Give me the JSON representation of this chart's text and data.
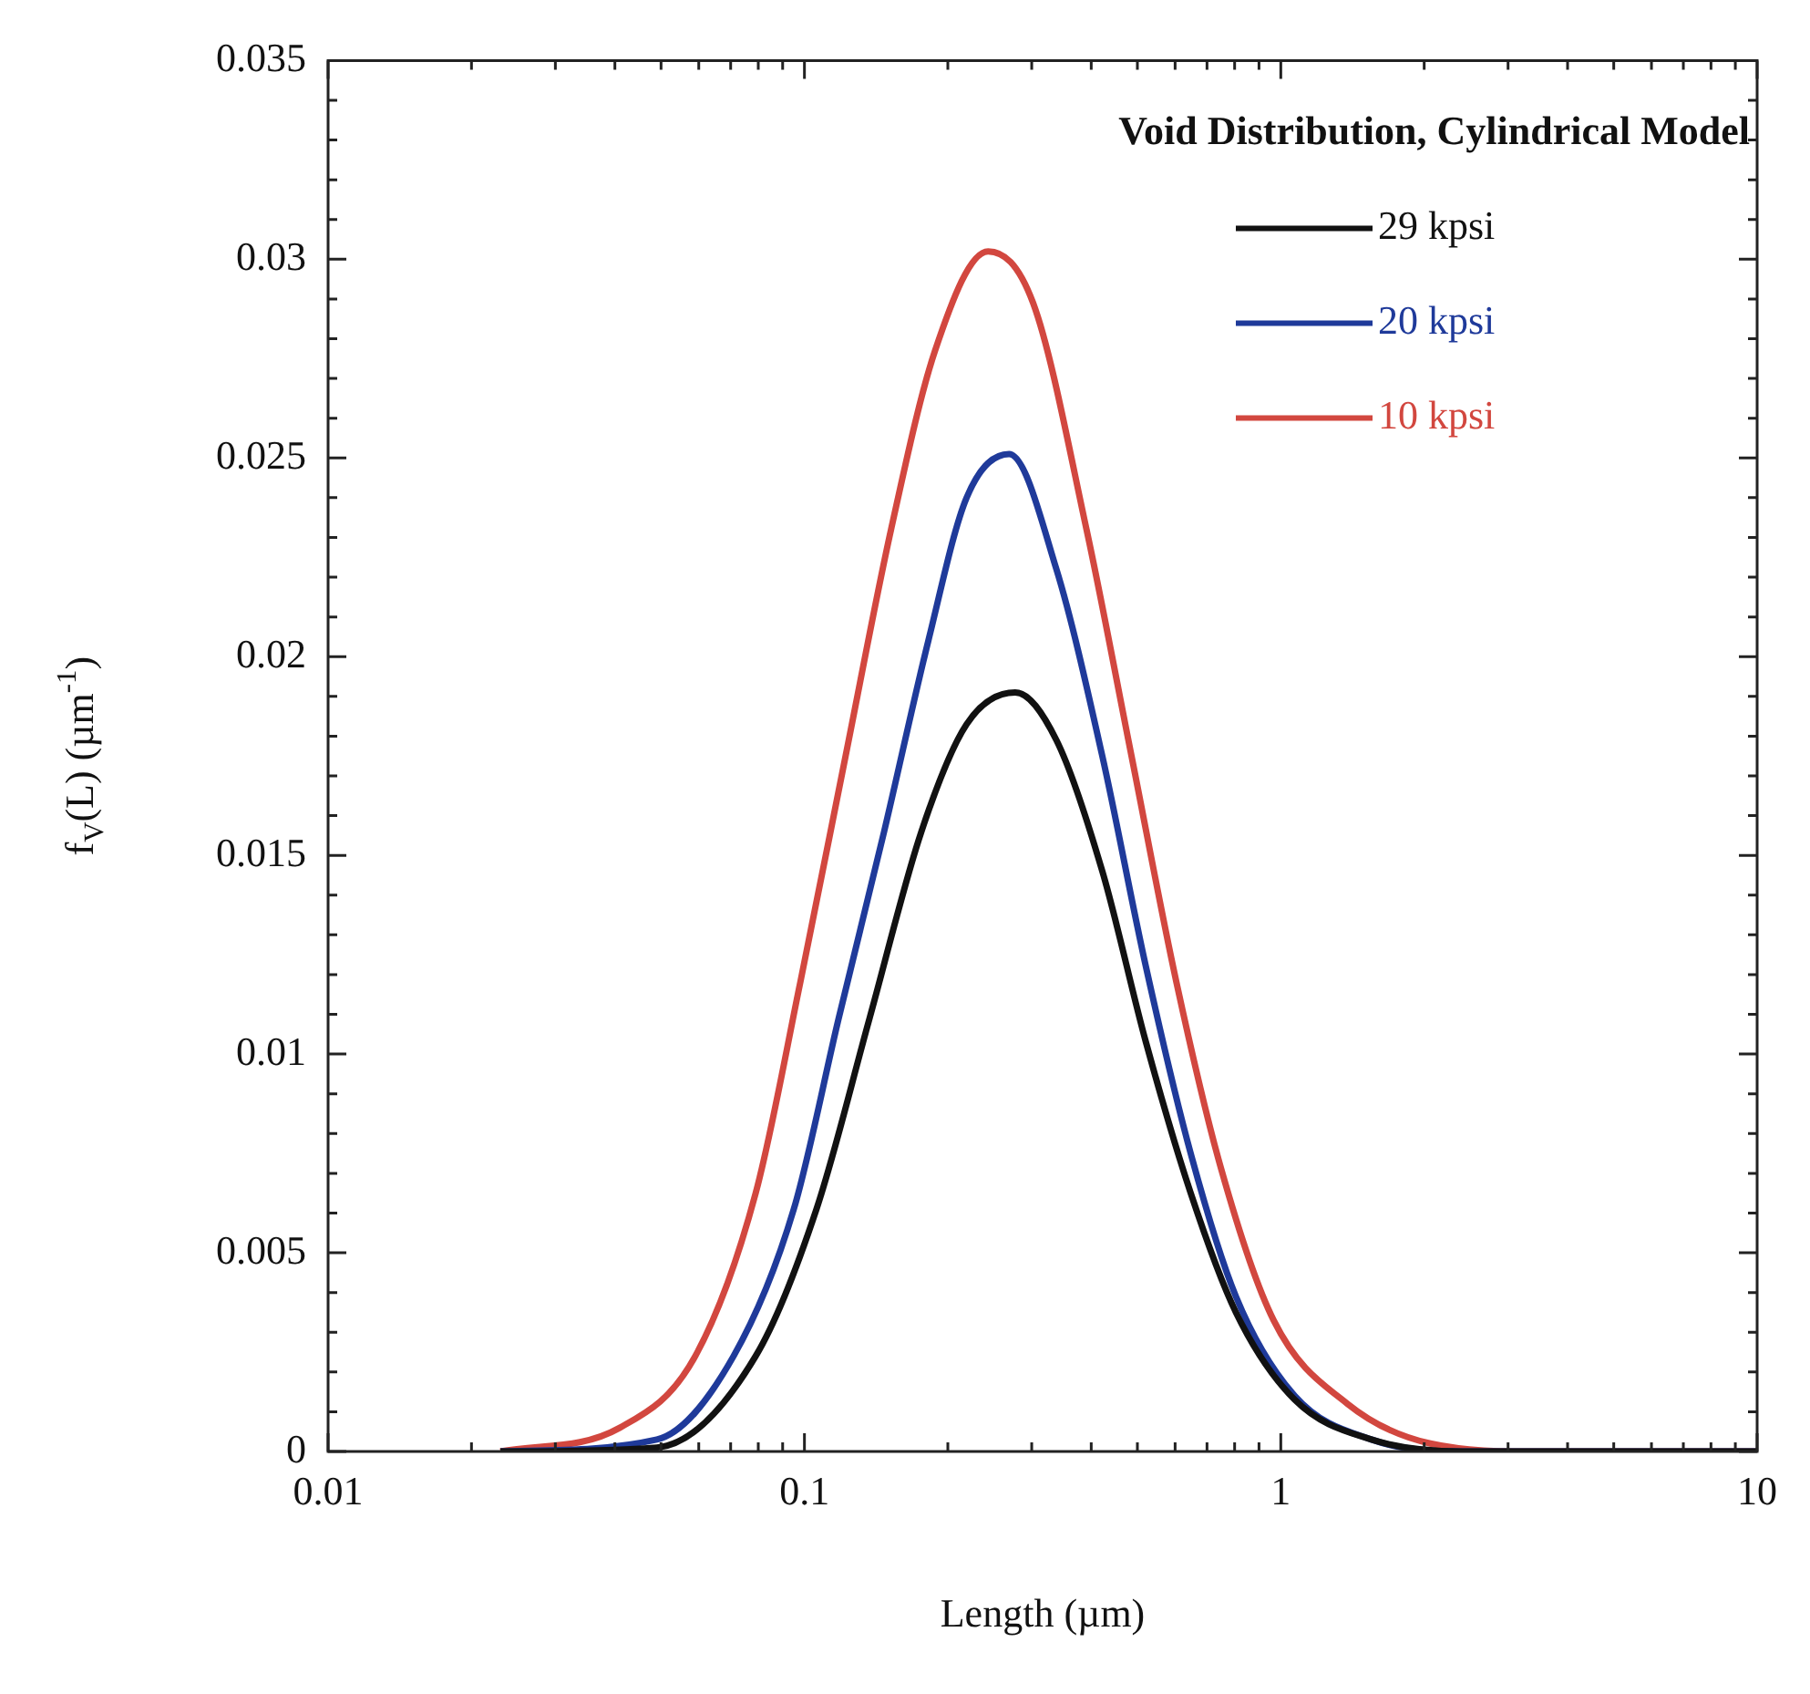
{
  "chart_data": {
    "type": "line",
    "xlabel": "Length (µm)",
    "ylabel": "f$_{V}$(L) (µm$^{-1}$)",
    "legend_title": "Void Distribution, Cylindrical Model",
    "log": "x",
    "xlim": [
      0.01,
      10
    ],
    "ylim": [
      0,
      0.035
    ],
    "xticks": [
      0.01,
      {
        "value": 0.02,
        "label": null
      },
      {
        "value": 0.03,
        "label": null
      },
      {
        "value": 0.04,
        "label": null
      },
      {
        "value": 0.05,
        "label": null
      },
      {
        "value": 0.06,
        "label": null
      },
      {
        "value": 0.07,
        "label": null
      },
      {
        "value": 0.08,
        "label": null
      },
      {
        "value": 0.09,
        "label": null
      },
      0.1,
      {
        "value": 0.2,
        "label": null
      },
      {
        "value": 0.3,
        "label": null
      },
      {
        "value": 0.4,
        "label": null
      },
      {
        "value": 0.5,
        "label": null
      },
      {
        "value": 0.6,
        "label": null
      },
      {
        "value": 0.7,
        "label": null
      },
      {
        "value": 0.8,
        "label": null
      },
      {
        "value": 0.9,
        "label": null
      },
      1,
      {
        "value": 2,
        "label": null
      },
      {
        "value": 3,
        "label": null
      },
      {
        "value": 4,
        "label": null
      },
      {
        "value": 5,
        "label": null
      },
      {
        "value": 6,
        "label": null
      },
      {
        "value": 7,
        "label": null
      },
      {
        "value": 8,
        "label": null
      },
      {
        "value": 9,
        "label": null
      },
      10
    ],
    "yticks": [
      0,
      {
        "value": 0.001,
        "label": null
      },
      {
        "value": 0.002,
        "label": null
      },
      {
        "value": 0.003,
        "label": null
      },
      {
        "value": 0.004,
        "label": null
      },
      0.005,
      {
        "value": 0.006,
        "label": null
      },
      {
        "value": 0.007,
        "label": null
      },
      {
        "value": 0.008,
        "label": null
      },
      {
        "value": 0.009,
        "label": null
      },
      0.01,
      {
        "value": 0.011,
        "label": null
      },
      {
        "value": 0.012,
        "label": null
      },
      {
        "value": 0.013,
        "label": null
      },
      {
        "value": 0.014,
        "label": null
      },
      0.015,
      {
        "value": 0.016,
        "label": null
      },
      {
        "value": 0.017,
        "label": null
      },
      {
        "value": 0.018,
        "label": null
      },
      {
        "value": 0.019,
        "label": null
      },
      0.02,
      {
        "value": 0.021,
        "label": null
      },
      {
        "value": 0.022,
        "label": null
      },
      {
        "value": 0.023,
        "label": null
      },
      {
        "value": 0.024,
        "label": null
      },
      0.025,
      {
        "value": 0.026,
        "label": null
      },
      {
        "value": 0.027,
        "label": null
      },
      {
        "value": 0.028,
        "label": null
      },
      {
        "value": 0.029,
        "label": null
      },
      0.03,
      {
        "value": 0.031,
        "label": null
      },
      {
        "value": 0.032,
        "label": null
      },
      {
        "value": 0.033,
        "label": null
      },
      {
        "value": 0.034,
        "label": null
      },
      0.035
    ],
    "grid": false,
    "legend": "top right",
    "marker": "none",
    "line_style": "solid",
    "series": [
      {
        "name": "29 kpsi",
        "color": "#111111",
        "x": [
          0.023,
          0.049,
          0.079,
          0.106,
          0.137,
          0.176,
          0.219,
          0.277,
          0.338,
          0.422,
          0.521,
          0.647,
          0.805,
          1.07,
          1.55,
          2.4,
          10
        ],
        "values": [
          0,
          0.0001,
          0.0024,
          0.0061,
          0.0109,
          0.0156,
          0.0183,
          0.0191,
          0.0179,
          0.0146,
          0.0103,
          0.0065,
          0.0035,
          0.0013,
          0.0003,
          0,
          0
        ]
      },
      {
        "name": "20 kpsi",
        "color": "#1f3a9a",
        "x": [
          0.023,
          0.049,
          0.071,
          0.095,
          0.118,
          0.147,
          0.182,
          0.219,
          0.269,
          0.338,
          0.422,
          0.521,
          0.647,
          0.805,
          1.07,
          1.55,
          2.4,
          10
        ],
        "values": [
          0,
          0.0003,
          0.0024,
          0.0061,
          0.0109,
          0.0156,
          0.0204,
          0.024,
          0.0251,
          0.0222,
          0.0175,
          0.0122,
          0.0075,
          0.0039,
          0.0014,
          0.0003,
          0,
          0
        ]
      },
      {
        "name": "10 kpsi",
        "color": "#d2473f",
        "x": [
          0.023,
          0.041,
          0.059,
          0.079,
          0.098,
          0.122,
          0.152,
          0.188,
          0.243,
          0.302,
          0.391,
          0.486,
          0.604,
          0.75,
          0.966,
          1.38,
          2.06,
          3.45,
          10
        ],
        "values": [
          0,
          0.0006,
          0.0024,
          0.0065,
          0.0118,
          0.0175,
          0.0232,
          0.0277,
          0.0302,
          0.0289,
          0.0232,
          0.0175,
          0.0118,
          0.0071,
          0.0033,
          0.0012,
          0.0002,
          0,
          0
        ]
      }
    ]
  }
}
